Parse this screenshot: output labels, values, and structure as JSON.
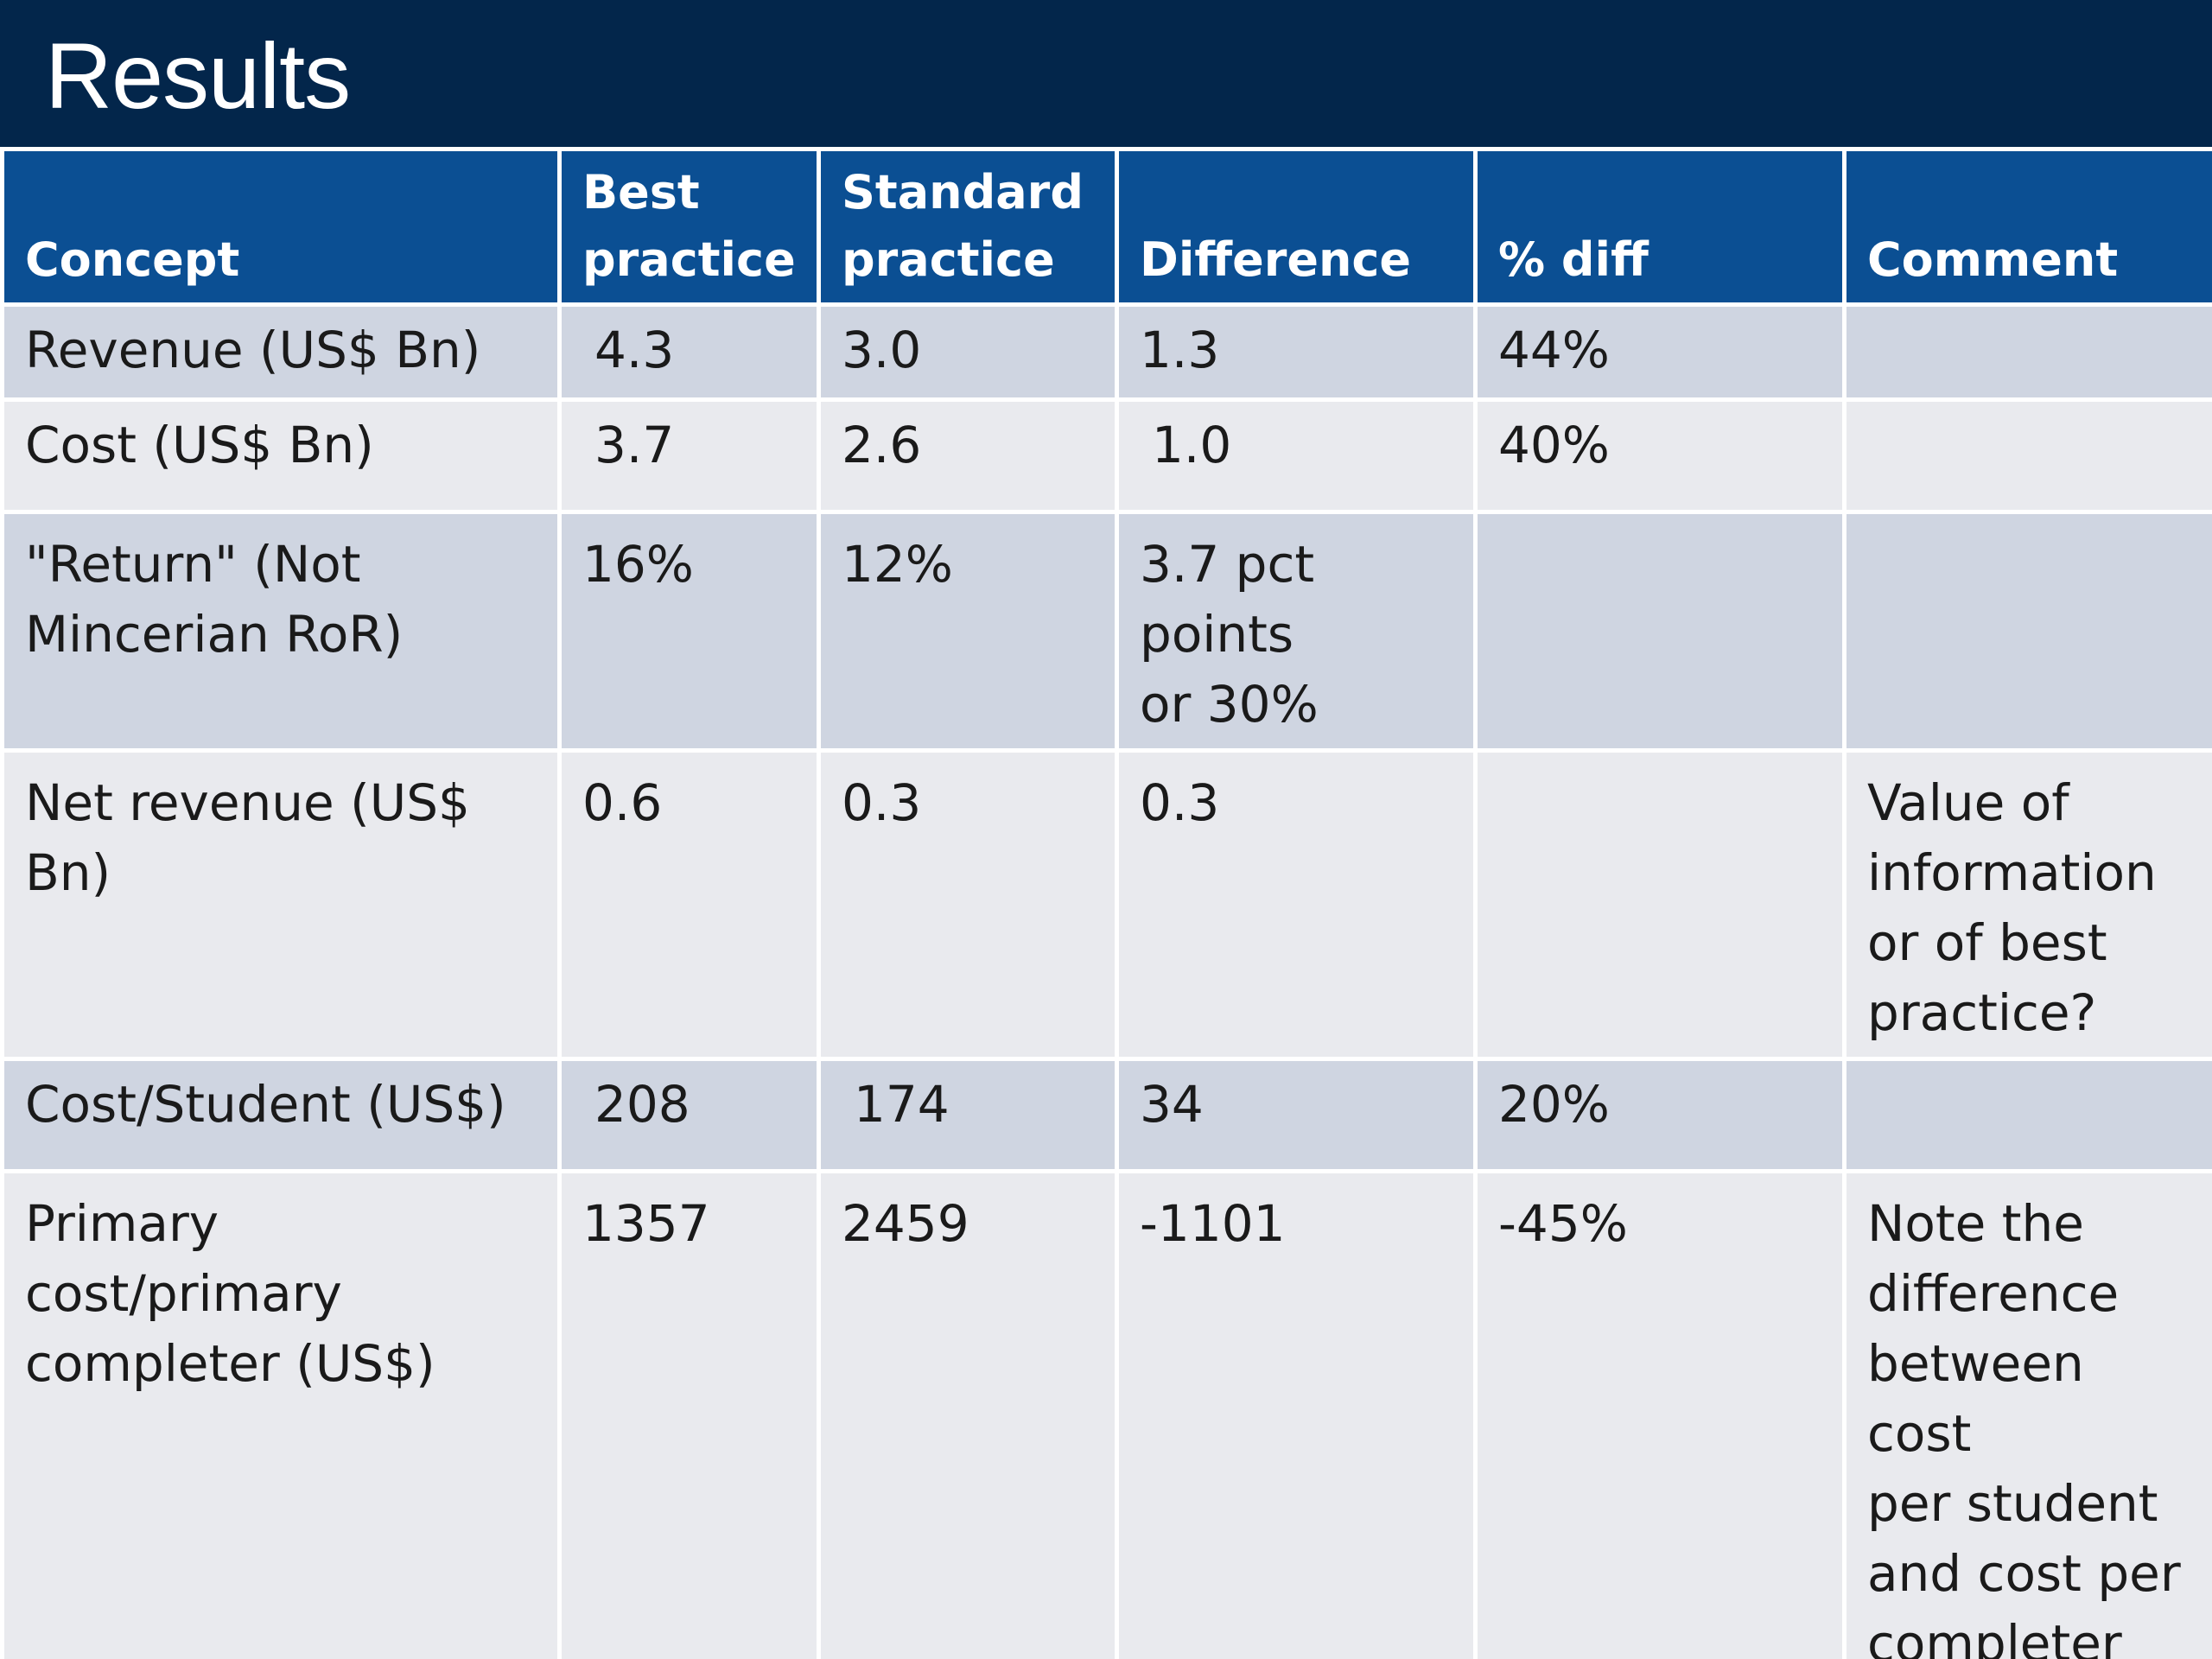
{
  "slide": {
    "title": "Results"
  },
  "table": {
    "headers": {
      "concept": "Concept",
      "best": "Best\npractice",
      "standard": "Standard\npractice",
      "difference": "Difference",
      "pct_diff": "% diff",
      "comment": "Comment"
    },
    "rows": [
      {
        "concept": "Revenue (US$ Bn)",
        "best": "4.3",
        "standard": "3.0",
        "difference": "1.3",
        "pct_diff": "44%",
        "comment": ""
      },
      {
        "concept": "Cost (US$ Bn)",
        "best": "3.7",
        "standard": "2.6",
        "difference": "1.0",
        "pct_diff": "40%",
        "comment": ""
      },
      {
        "concept": "\"Return\" (Not\nMincerian RoR)",
        "best": "16%",
        "standard": "12%",
        "difference": "3.7 pct\npoints\nor 30%",
        "pct_diff": "",
        "comment": ""
      },
      {
        "concept": "Net revenue (US$ Bn)",
        "best": "0.6",
        "standard": "0.3",
        "difference": "0.3",
        "pct_diff": "",
        "comment": "Value of\ninformation\nor of best\npractice?"
      },
      {
        "concept": "Cost/Student (US$)",
        "best": "208",
        "standard": "174",
        "difference": "34",
        "pct_diff": "20%",
        "comment": ""
      },
      {
        "concept": "Primary cost/primary\ncompleter (US$)",
        "best": "1357",
        "standard": "2459",
        "difference": "-1101",
        "pct_diff": "-45%",
        "comment": "Note the\ndifference\nbetween cost\nper student\nand cost per\ncompleter"
      }
    ]
  },
  "colors": {
    "title_bar": "#03264b",
    "header_row": "#0b4f93",
    "row_band_dark": "#cfd5e1",
    "row_band_light": "#e9eaee"
  }
}
